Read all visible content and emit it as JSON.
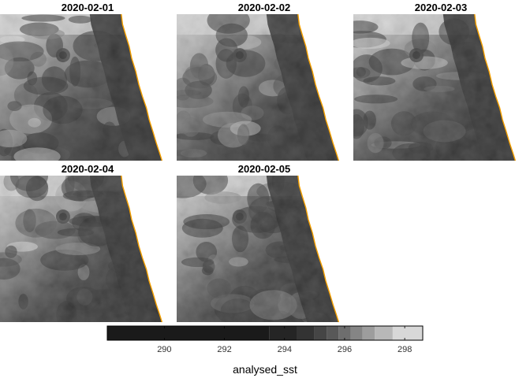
{
  "chart_data": {
    "type": "heatmap",
    "variable": "analysed_sst",
    "panels": [
      {
        "title": "2020-02-01"
      },
      {
        "title": "2020-02-02"
      },
      {
        "title": "2020-02-03"
      },
      {
        "title": "2020-02-04"
      },
      {
        "title": "2020-02-05"
      }
    ],
    "colorbar": {
      "label": "analysed_sst",
      "range": [
        288.1,
        298.6
      ],
      "ticks": [
        290,
        292,
        294,
        296,
        298
      ],
      "breaks": [
        288.1,
        293.5,
        294.4,
        295.0,
        295.4,
        295.8,
        296.2,
        296.6,
        297.0,
        297.6,
        298.6
      ],
      "colors": [
        "#1a1a1a",
        "#252525",
        "#333333",
        "#454545",
        "#585858",
        "#6e6e6e",
        "#858585",
        "#9d9d9d",
        "#b8b8b8",
        "#d8d8d8"
      ]
    },
    "coastline_color": "#f5a000",
    "land_color": "#ffffff",
    "grid": false,
    "legend_position": "bottom"
  }
}
